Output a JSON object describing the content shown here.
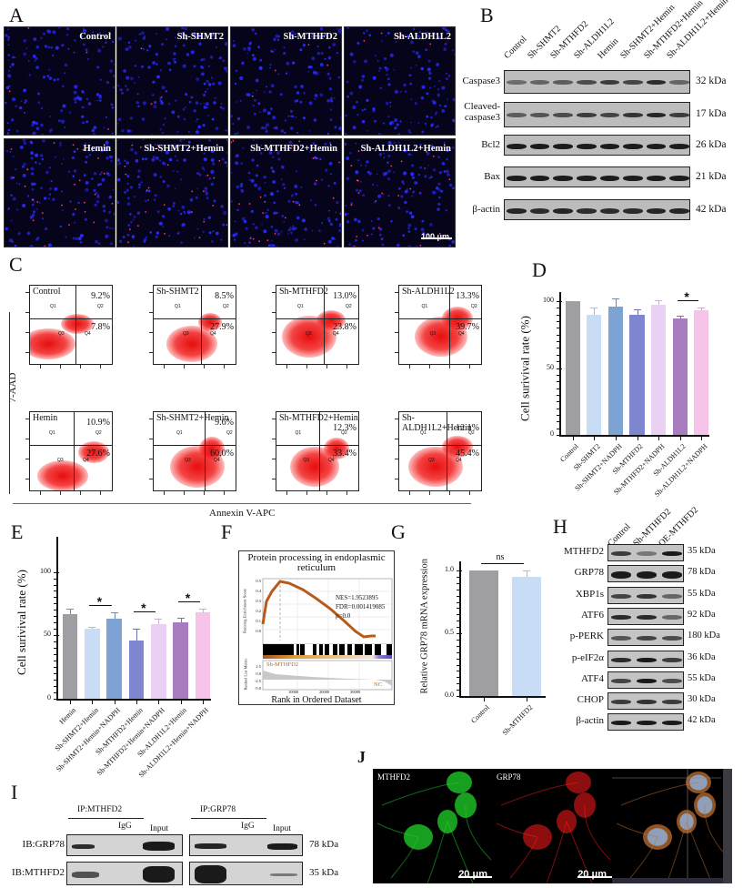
{
  "panels": {
    "A": {
      "letter": "A",
      "images": [
        {
          "label": "Control"
        },
        {
          "label": "Sh-SHMT2"
        },
        {
          "label": "Sh-MTHFD2"
        },
        {
          "label": "Sh-ALDH1L2"
        },
        {
          "label": "Hemin"
        },
        {
          "label": "Sh-SHMT2+Hemin"
        },
        {
          "label": "Sh-MTHFD2+Hemin"
        },
        {
          "label": "Sh-ALDH1L2+Hemin"
        }
      ],
      "scale_bar": "100 μm",
      "colors": {
        "background": "#05041a",
        "nuclei": "#2a2aff",
        "positive": "#ff3a6a"
      }
    },
    "B": {
      "letter": "B",
      "lanes": [
        "Control",
        "Sh-SHMT2",
        "Sh-MTHFD2",
        "Sh-ALDH1L2",
        "Hemin",
        "Sh-SHMT2+Hemin",
        "Sh-MTHFD2+Hemin",
        "Sh-ALDH1L2+Hemin"
      ],
      "rows": [
        {
          "label": "Caspase3",
          "kda": "32 kDa"
        },
        {
          "label": "Cleaved-\ncaspase3",
          "label_line1": "Cleaved-",
          "label_line2": "caspase3",
          "kda": "17 kDa"
        },
        {
          "label": "Bcl2",
          "kda": "26 kDa"
        },
        {
          "label": "Bax",
          "kda": "21 kDa"
        },
        {
          "label": "β-actin",
          "kda": "42 kDa"
        }
      ]
    },
    "C": {
      "letter": "C",
      "y_axis": "7-AAD",
      "x_axis": "Annexin V-APC",
      "plots": [
        {
          "label": "Control",
          "q2": "9.2%",
          "q4": "7.8%"
        },
        {
          "label": "Sh-SHMT2",
          "q2": "8.5%",
          "q4": "27.9%"
        },
        {
          "label": "Sh-MTHFD2",
          "q2": "13.0%",
          "q4": "23.8%"
        },
        {
          "label": "Sh-ALDH1L2",
          "q2": "13.3%",
          "q4": "39.7%"
        },
        {
          "label": "Hemin",
          "q2": "10.9%",
          "q4": "27.6%"
        },
        {
          "label": "Sh-SHMT2+Hemin",
          "q2": "9.6%",
          "q4": "60.0%"
        },
        {
          "label": "Sh-MTHFD2+Hemin",
          "q2": "12.3%",
          "q4": "33.4%"
        },
        {
          "label": "Sh-ALDH1L2+Hemin",
          "q2": "12.1%",
          "q4": "45.4%"
        }
      ],
      "quadrants": [
        "Q1",
        "Q2",
        "Q3",
        "Q4"
      ]
    },
    "D": {
      "letter": "D"
    },
    "E": {
      "letter": "E"
    },
    "F": {
      "letter": "F",
      "title_line1": "Protein processing in endoplasmic",
      "title_line2": "reticulum",
      "stats_nes": "NES=1.9523895",
      "stats_fdr": "FDR=0.001419085",
      "stats_p": "p=0.0",
      "es_ylabel": "Running Enrichment Score",
      "metric_ylabel": "Ranked List Metric",
      "es_ticks": [
        "0.5",
        "0.4",
        "0.3",
        "0.2",
        "0.1",
        "0.0"
      ],
      "metric_ticks": [
        "2.5",
        "0.0",
        "-2.5",
        "-5.0"
      ],
      "x_ticks": [
        "10000",
        "20000",
        "30000"
      ],
      "group_high": "Sh-MTHFD2",
      "group_low": "NC",
      "xlabel": "Rank in Ordered Dataset"
    },
    "G": {
      "letter": "G"
    },
    "H": {
      "letter": "H",
      "lanes": [
        "Control",
        "Sh-MTHFD2",
        "OE-MTHFD2"
      ],
      "rows": [
        {
          "label": "MTHFD2",
          "kda": "35 kDa"
        },
        {
          "label": "GRP78",
          "kda": "78 kDa"
        },
        {
          "label": "XBP1s",
          "kda": "55 kDa"
        },
        {
          "label": "ATF6",
          "kda": "92 kDa"
        },
        {
          "label": "p-PERK",
          "kda": "180 kDa"
        },
        {
          "label": "p-eIF2α",
          "kda": "36 kDa"
        },
        {
          "label": "ATF4",
          "kda": "55 kDa"
        },
        {
          "label": "CHOP",
          "kda": "30 kDa"
        },
        {
          "label": "β-actin",
          "kda": "42 kDa"
        }
      ]
    },
    "I": {
      "letter": "I",
      "groups": [
        {
          "header": "IP:MTHFD2",
          "igg": "IgG",
          "input": "Input"
        },
        {
          "header": "IP:GRP78",
          "igg": "IgG",
          "input": "Input"
        }
      ],
      "rows": [
        {
          "label": "IB:GRP78",
          "kda": "78 kDa"
        },
        {
          "label": "IB:MTHFD2",
          "kda": "35 kDa"
        }
      ]
    },
    "J": {
      "letter": "J",
      "images": [
        {
          "label": "MTHFD2",
          "scale": "20 μm",
          "color": "#1fd12a"
        },
        {
          "label": "GRP78",
          "scale": "20 μm",
          "color": "#ff1a1a"
        },
        {
          "label": "",
          "scale": "",
          "color": "merge"
        }
      ]
    }
  },
  "chart_data": [
    {
      "id": "D",
      "type": "bar",
      "title": "",
      "xlabel": "",
      "ylabel": "Cell surivival rate (%)",
      "ylim": [
        0,
        100
      ],
      "yticks": [
        "0",
        "50",
        "100"
      ],
      "categories": [
        "Control",
        "Sh-SHMT2",
        "Sh-SHMT2+NADPH",
        "Sh-MTHFD2",
        "Sh-MTHFD2+NADPH",
        "Sh-ALDH1L2",
        "Sh-ALDH1L2+NADPH"
      ],
      "values": [
        100,
        90,
        96,
        90,
        97,
        87,
        93
      ],
      "errors": [
        0,
        5,
        6,
        4,
        4,
        2,
        2
      ],
      "colors": [
        "#9e9ea3",
        "#c9dcf5",
        "#7da3d4",
        "#7d86cf",
        "#ead0f2",
        "#a87dc0",
        "#f5c4e8"
      ],
      "significance": [
        {
          "from": 5,
          "to": 6,
          "label": "*"
        }
      ]
    },
    {
      "id": "E",
      "type": "bar",
      "title": "",
      "xlabel": "",
      "ylabel": "Cell surivival rate (%)",
      "ylim": [
        0,
        100
      ],
      "yticks": [
        "0",
        "50",
        "100"
      ],
      "categories": [
        "Hemin",
        "Sh-SHMT2+Hemin",
        "Sh-SHMT2+Hemin+NADPH",
        "Sh-MTHFD2+Hemin",
        "Sh-MTHFD2+Hemin+NADPH",
        "Sh-ALDH1L2+Hemin",
        "Sh-ALDH1L2+Hemin+NADPH"
      ],
      "values": [
        67,
        55,
        63,
        46,
        59,
        60,
        68
      ],
      "errors": [
        4,
        2,
        5,
        9,
        4,
        4,
        3
      ],
      "colors": [
        "#9e9ea3",
        "#c9dcf5",
        "#7da3d4",
        "#7d86cf",
        "#ead0f2",
        "#a87dc0",
        "#f5c4e8"
      ],
      "significance": [
        {
          "from": 1,
          "to": 2,
          "label": "*"
        },
        {
          "from": 3,
          "to": 4,
          "label": "*"
        },
        {
          "from": 5,
          "to": 6,
          "label": "*"
        }
      ]
    },
    {
      "id": "G",
      "type": "bar",
      "title": "",
      "xlabel": "",
      "ylabel": "Relative GRP78 mRNA expression",
      "ylim": [
        0,
        1.0
      ],
      "yticks": [
        "0.0",
        "0.5",
        "1.0"
      ],
      "categories": [
        "Control",
        "Sh-MTHFD2"
      ],
      "values": [
        1.0,
        0.95
      ],
      "errors": [
        0,
        0.05
      ],
      "colors": [
        "#9e9ea3",
        "#c9dcf5"
      ],
      "significance": [
        {
          "from": 0,
          "to": 1,
          "label": "ns"
        }
      ]
    },
    {
      "id": "F",
      "type": "line",
      "title": "Protein processing in endoplasmic reticulum",
      "xlabel": "Rank in Ordered Dataset",
      "ylabel": "Running Enrichment Score",
      "x": [
        0,
        1000,
        2500,
        5000,
        8000,
        12000,
        16000,
        20000,
        24000,
        28000,
        30000,
        32000
      ],
      "y": [
        0.0,
        0.25,
        0.38,
        0.47,
        0.45,
        0.38,
        0.3,
        0.2,
        0.11,
        0.03,
        0.01,
        0.02
      ],
      "ylim": [
        0.0,
        0.5
      ],
      "xlim": [
        0,
        36000
      ],
      "annotations": [
        "NES=1.9523895",
        "FDR=0.001419085",
        "p=0.0"
      ]
    }
  ]
}
